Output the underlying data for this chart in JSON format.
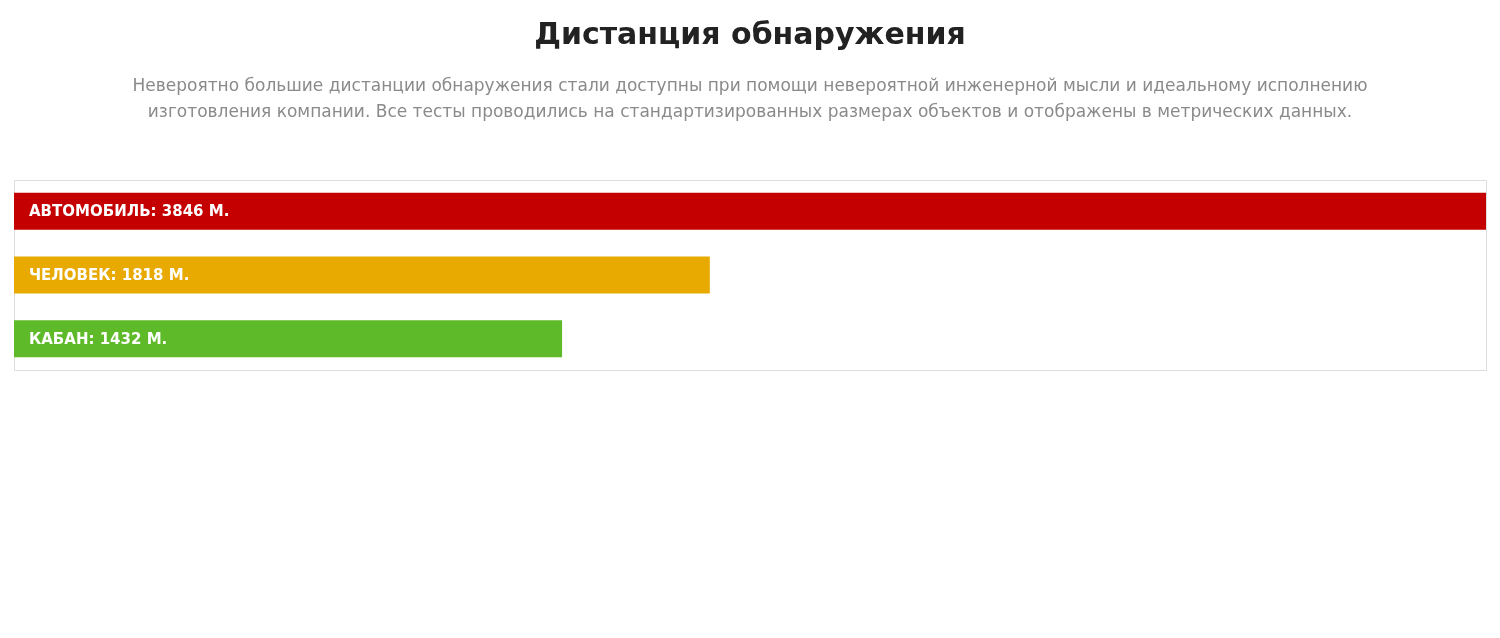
{
  "chart_data": {
    "type": "bar",
    "orientation": "horizontal",
    "title": "Дистанция обнаружения",
    "subtitle": "Невероятно большие дистанции обнаружения стали доступны при помощи невероятной инженерной мысли и идеальному исполнению изготовления компании. Все тесты проводились на стандартизированных размерах объектов и отображены в метрических данных.",
    "categories": [
      null,
      null,
      null
    ],
    "values": [
      3846,
      1818,
      1432
    ],
    "colors": [
      "#c40000",
      "#e8aa00",
      "#5fba2a"
    ],
    "value_labels": [
      "АВТОМОБИЛЬ: 3846 М.",
      "ЧЕЛОВЕК: 1818 М.",
      "КАБАН: 1432 М."
    ],
    "grid": false,
    "tick_labels": false
  }
}
